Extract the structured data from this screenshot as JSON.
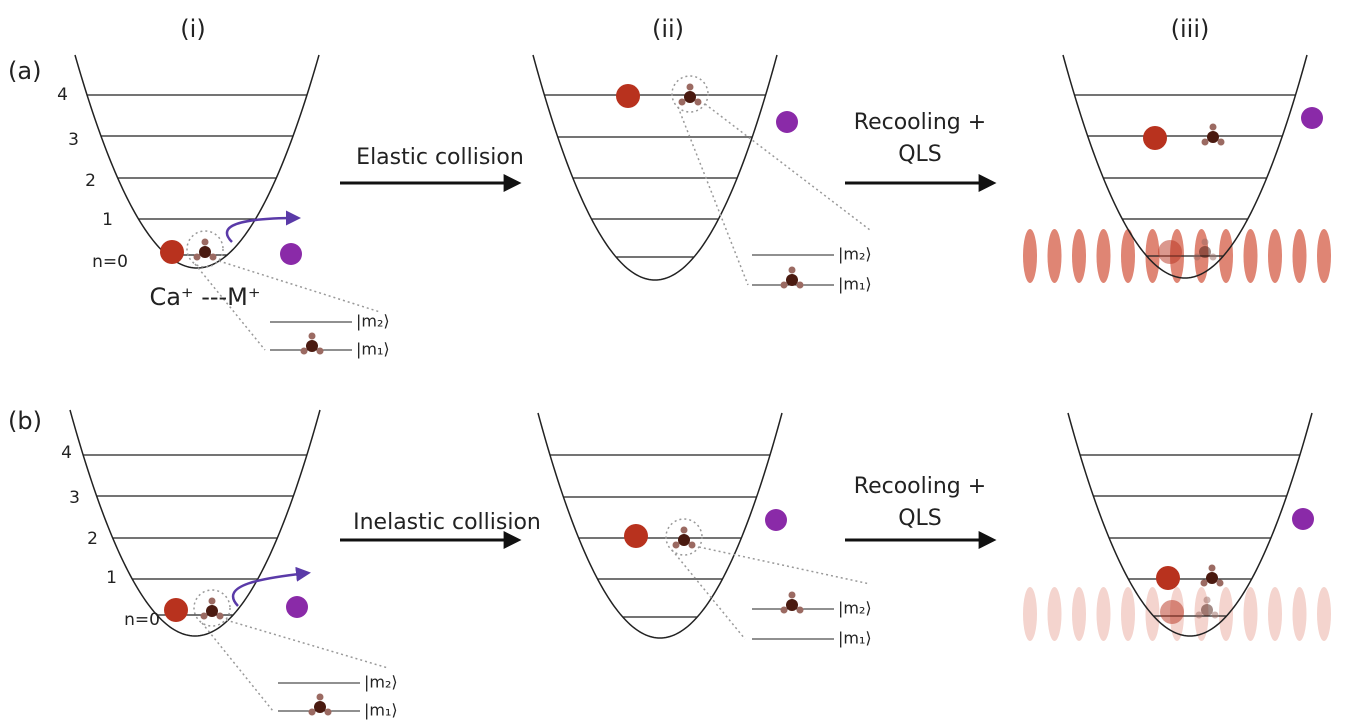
{
  "columns": [
    "(i)",
    "(ii)",
    "(iii)"
  ],
  "rows": [
    {
      "label": "(a)",
      "levels": [
        "4",
        "3",
        "2",
        "1",
        "n=0"
      ],
      "species": "Ca⁺ ---M⁺",
      "transition": "Elastic collision",
      "recooling": [
        "Recooling +",
        "QLS"
      ],
      "states_i": [
        "|m₂⟩",
        "|m₁⟩"
      ],
      "states_ii": [
        "|m₂⟩",
        "|m₁⟩"
      ]
    },
    {
      "label": "(b)",
      "levels": [
        "4",
        "3",
        "2",
        "1",
        "n=0"
      ],
      "transition": "Inelastic collision",
      "recooling": [
        "Recooling +",
        "QLS"
      ],
      "states_i": [
        "|m₂⟩",
        "|m₁⟩"
      ],
      "states_ii": [
        "|m₂⟩",
        "|m₁⟩"
      ]
    }
  ]
}
